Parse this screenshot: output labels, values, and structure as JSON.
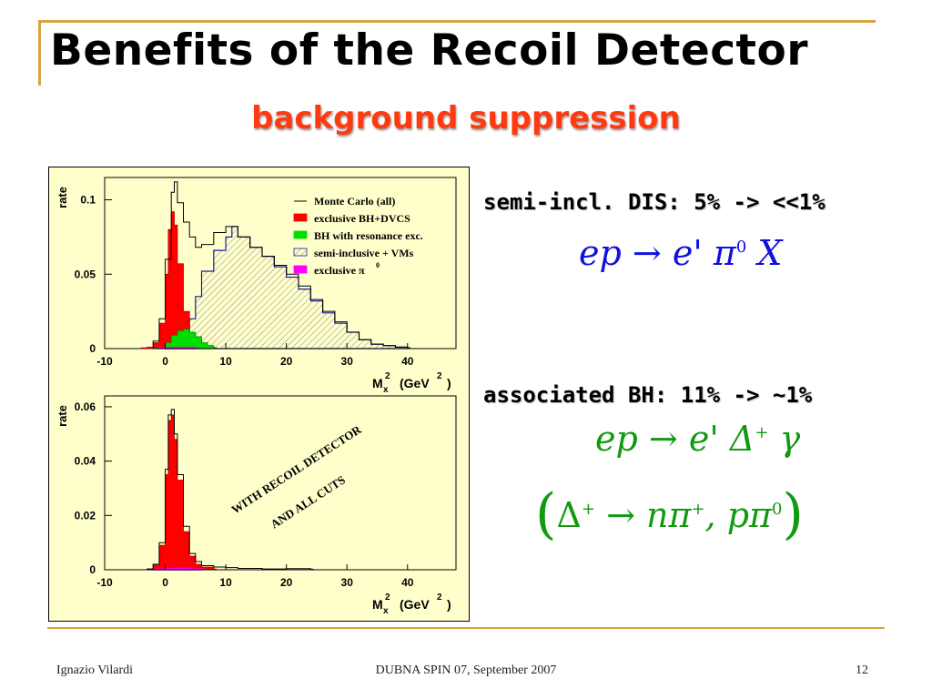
{
  "slide": {
    "title": "Benefits of the Recoil Detector",
    "subtitle": "background suppression",
    "right_text_1": "semi-incl. DIS: 5% -> <<1%",
    "right_text_2": "associated BH: 11% -> ~1%",
    "formula_1": {
      "lhs": "ep",
      "arrow": "→",
      "rhs": "e' π",
      "sup": "0",
      "tail": "X"
    },
    "formula_2": {
      "lhs": "ep",
      "arrow": "→",
      "rhs": "e' Δ",
      "sup": "+",
      "tail": "γ"
    },
    "formula_3": {
      "open": "(",
      "delta": "Δ",
      "delta_sup": "+",
      "arrow": "→",
      "np": "nπ",
      "np_sup": "+",
      "comma": ",",
      "pp": "pπ",
      "pp_sup": "0",
      "close": ")"
    }
  },
  "footer": {
    "author": "Ignazio Vilardi",
    "event": "DUBNA SPIN 07, September 2007",
    "page": "12"
  },
  "colors": {
    "accent_rule": "#d9a441",
    "subtitle": "#ff3a10",
    "formula_blue": "#1010e0",
    "formula_green": "#109a10",
    "plot_bg": "#ffffcc",
    "exclusive_bh_dvcs": "#ff0000",
    "bh_resonance": "#00dd00",
    "semi_inclusive": "#1a1aa0",
    "exclusive_pi0": "#ff00ff"
  },
  "chart_data": [
    {
      "type": "area",
      "title": "",
      "xlabel": "M_x^2 (GeV^2)",
      "ylabel": "rate",
      "xlim": [
        -10,
        48
      ],
      "ylim": [
        0,
        0.115
      ],
      "x_ticks": [
        "-10",
        "0",
        "10",
        "20",
        "30",
        "40"
      ],
      "y_ticks": [
        "0",
        "0.05",
        "0.1"
      ],
      "legend_position": "top-right",
      "series": [
        {
          "name": "Monte Carlo (all)",
          "x": [
            -2,
            -1,
            0,
            1,
            1.5,
            2,
            3,
            4,
            5,
            6,
            8,
            10,
            12,
            14,
            16,
            18,
            20,
            22,
            24,
            26,
            28,
            30,
            32,
            34,
            36,
            38,
            40
          ],
          "values": [
            0.005,
            0.02,
            0.06,
            0.105,
            0.112,
            0.098,
            0.085,
            0.075,
            0.068,
            0.07,
            0.078,
            0.082,
            0.075,
            0.068,
            0.062,
            0.056,
            0.05,
            0.042,
            0.033,
            0.025,
            0.018,
            0.011,
            0.006,
            0.003,
            0.002,
            0.001,
            0.0005
          ]
        },
        {
          "name": "exclusive BH+DVCS",
          "x": [
            -4,
            -3,
            -2,
            -1,
            0,
            0.5,
            1,
            1.5,
            2,
            3,
            4,
            5,
            6,
            7,
            8
          ],
          "values": [
            0.0005,
            0.001,
            0.004,
            0.017,
            0.05,
            0.08,
            0.092,
            0.083,
            0.057,
            0.025,
            0.01,
            0.004,
            0.002,
            0.001,
            0.0005
          ]
        },
        {
          "name": "BH with resonance exc.",
          "x": [
            -2,
            0,
            1,
            2,
            3,
            4,
            5,
            6,
            7,
            8
          ],
          "values": [
            0.0005,
            0.004,
            0.009,
            0.012,
            0.013,
            0.011,
            0.008,
            0.004,
            0.002,
            0.0005
          ]
        },
        {
          "name": "semi-inclusive + VMs",
          "x": [
            0,
            2,
            4,
            5,
            6,
            8,
            10,
            11,
            12,
            14,
            16,
            18,
            20,
            22,
            24,
            26,
            28,
            30,
            32,
            34,
            36,
            38,
            40
          ],
          "values": [
            0,
            0.005,
            0.02,
            0.035,
            0.052,
            0.066,
            0.075,
            0.082,
            0.075,
            0.068,
            0.062,
            0.055,
            0.048,
            0.04,
            0.032,
            0.024,
            0.017,
            0.011,
            0.006,
            0.003,
            0.002,
            0.001,
            0.0005
          ]
        },
        {
          "name": "exclusive π",
          "x": [
            -1,
            1,
            3,
            5
          ],
          "values": [
            0.0005,
            0.0008,
            0.0008,
            0.0005
          ]
        }
      ],
      "legend_entries": [
        "Monte Carlo (all)",
        "exclusive BH+DVCS",
        "BH with resonance exc.",
        "semi-inclusive + VMs",
        "exclusive π"
      ],
      "legend_superscript": "0",
      "xlabel_parts": {
        "main": "M",
        "sub": "x",
        "sup": "2",
        "unit": "(GeV",
        "unit_sup": "2",
        "unit_close": ")"
      }
    },
    {
      "type": "area",
      "title": "",
      "xlabel": "M_x^2 (GeV^2)",
      "ylabel": "rate",
      "xlim": [
        -10,
        48
      ],
      "ylim": [
        0,
        0.064
      ],
      "x_ticks": [
        "-10",
        "0",
        "10",
        "20",
        "30",
        "40"
      ],
      "y_ticks": [
        "0",
        "0.02",
        "0.04",
        "0.06"
      ],
      "annotation_lines": [
        "WITH RECOIL DETECTOR",
        "AND ALL CUTS"
      ],
      "series": [
        {
          "name": "Monte Carlo (all)",
          "x": [
            -3,
            -2,
            -1,
            0,
            0.5,
            1,
            1.5,
            2,
            3,
            4,
            5,
            6,
            8,
            10,
            12,
            16,
            20,
            24
          ],
          "values": [
            0.0003,
            0.002,
            0.01,
            0.037,
            0.057,
            0.059,
            0.05,
            0.035,
            0.016,
            0.006,
            0.003,
            0.0015,
            0.001,
            0.0008,
            0.0005,
            0.0003,
            0.0004,
            0.0002
          ]
        },
        {
          "name": "exclusive BH+DVCS",
          "x": [
            -3,
            -2,
            -1,
            0,
            0.5,
            1,
            1.5,
            2,
            3,
            4,
            5,
            6,
            8
          ],
          "values": [
            0.0003,
            0.002,
            0.009,
            0.035,
            0.055,
            0.057,
            0.048,
            0.033,
            0.014,
            0.005,
            0.002,
            0.001,
            0.0003
          ]
        },
        {
          "name": "exclusive π",
          "x": [
            -2,
            0,
            2,
            4,
            6
          ],
          "values": [
            0.0002,
            0.0004,
            0.0005,
            0.0003,
            0.0002
          ]
        }
      ]
    }
  ]
}
